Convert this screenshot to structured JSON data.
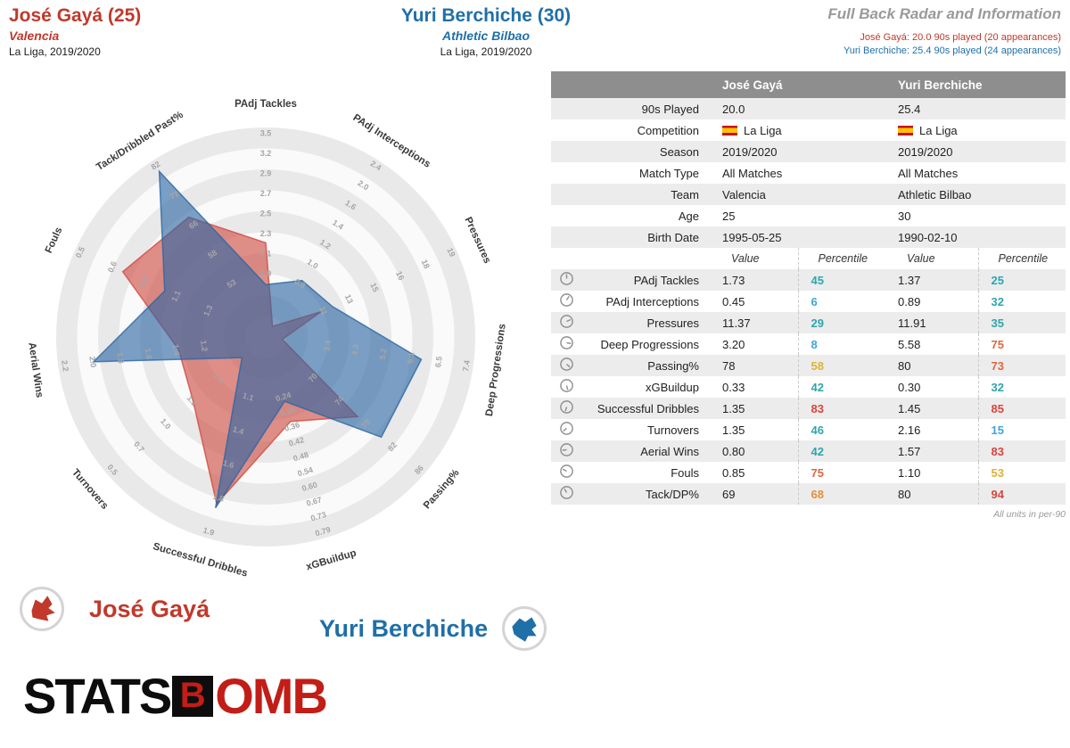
{
  "header": {
    "player1": {
      "name": "José Gayá (25)",
      "team": "Valencia",
      "league": "La Liga, 2019/2020"
    },
    "player2": {
      "name": "Yuri Berchiche (30)",
      "team": "Athletic Bilbao",
      "league": "La Liga, 2019/2020"
    },
    "title": "Full Back Radar and Information",
    "note1": "José Gayá: 20.0 90s played (20 appearances)",
    "note2": "Yuri Berchiche: 25.4 90s played (24 appearances)"
  },
  "colors": {
    "player1": "#c0392b",
    "player2": "#1f6fa8",
    "radar_player1_fill": "#cf4a41",
    "radar_player2_fill": "#2b66a3",
    "percentile_stops": [
      {
        "max": 20,
        "color": "#3fa5d6"
      },
      {
        "max": 50,
        "color": "#2ea6ad"
      },
      {
        "max": 62,
        "color": "#ddb23c"
      },
      {
        "max": 72,
        "color": "#e2903c"
      },
      {
        "max": 80,
        "color": "#de6742"
      },
      {
        "max": 101,
        "color": "#d8453e"
      }
    ]
  },
  "chart_data": {
    "type": "radar",
    "title": "Full Back Radar and Information",
    "rings": 10,
    "legend_position": "bottom",
    "axes": [
      "PAdj Tackles",
      "PAdj Interceptions",
      "Pressures",
      "Deep Progressions",
      "Passing%",
      "xGBuildup",
      "Successful Dribbles",
      "Turnovers",
      "Aerial Wins",
      "Fouls",
      "Tack/Dribbled Past%"
    ],
    "axis_ticks": [
      [
        "1.9",
        "2.1",
        "2.3",
        "2.5",
        "2.7",
        "2.9",
        "3.2",
        "3.5"
      ],
      [
        "0.8",
        "1.0",
        "1.2",
        "1.4",
        "1.6",
        "2.0",
        "2.4"
      ],
      [
        "11",
        "13",
        "15",
        "16",
        "18",
        "19"
      ],
      [
        "3.4",
        "4.3",
        "5.2",
        "6.1",
        "6.5",
        "7.4"
      ],
      [
        "70",
        "74",
        "78",
        "82",
        "86"
      ],
      [
        "0.24",
        "0.30",
        "0.36",
        "0.42",
        "0.48",
        "0.54",
        "0.60",
        "0.67",
        "0.73",
        "0.79"
      ],
      [
        "1.1",
        "1.4",
        "1.6",
        "1.8",
        "1.9"
      ],
      [
        "1.4",
        "1.2",
        "1.0",
        "0.7",
        "0.5"
      ],
      [
        "1.2",
        "1.4",
        "1.6",
        "1.8",
        "2.0",
        "2.2"
      ],
      [
        "1.3",
        "1.1",
        "0.8",
        "0.6",
        "0.5"
      ],
      [
        "53",
        "58",
        "66",
        "72",
        "82"
      ]
    ],
    "series": [
      {
        "name": "José Gayá",
        "color": "#cf4a41",
        "values": [
          1.73,
          0.45,
          11.37,
          3.2,
          78,
          0.33,
          1.35,
          1.35,
          0.8,
          0.85,
          69
        ],
        "percentiles": [
          45,
          6,
          29,
          8,
          58,
          42,
          83,
          46,
          42,
          75,
          68
        ]
      },
      {
        "name": "Yuri Berchiche",
        "color": "#2b66a3",
        "values": [
          1.37,
          0.89,
          11.91,
          5.58,
          80,
          0.3,
          1.45,
          2.16,
          1.57,
          1.1,
          80
        ],
        "percentiles": [
          25,
          32,
          35,
          75,
          73,
          32,
          85,
          15,
          83,
          53,
          94
        ]
      }
    ]
  },
  "table": {
    "columns": [
      "José Gayá",
      "Yuri Berchiche"
    ],
    "info_rows": [
      {
        "label": "90s Played",
        "v1": "20.0",
        "v2": "25.4"
      },
      {
        "label": "Competition",
        "v1": "La Liga",
        "v2": "La Liga",
        "flag": true
      },
      {
        "label": "Season",
        "v1": "2019/2020",
        "v2": "2019/2020"
      },
      {
        "label": "Match Type",
        "v1": "All Matches",
        "v2": "All Matches"
      },
      {
        "label": "Team",
        "v1": "Valencia",
        "v2": "Athletic Bilbao"
      },
      {
        "label": "Age",
        "v1": "25",
        "v2": "30"
      },
      {
        "label": "Birth Date",
        "v1": "1995-05-25",
        "v2": "1990-02-10"
      }
    ],
    "value_header": [
      "Value",
      "Percentile",
      "Value",
      "Percentile"
    ],
    "metrics": [
      {
        "label": "PAdj Tackles",
        "v1": "1.73",
        "p1": 45,
        "v2": "1.37",
        "p2": 25
      },
      {
        "label": "PAdj Interceptions",
        "v1": "0.45",
        "p1": 6,
        "v2": "0.89",
        "p2": 32
      },
      {
        "label": "Pressures",
        "v1": "11.37",
        "p1": 29,
        "v2": "11.91",
        "p2": 35
      },
      {
        "label": "Deep Progressions",
        "v1": "3.20",
        "p1": 8,
        "v2": "5.58",
        "p2": 75
      },
      {
        "label": "Passing%",
        "v1": "78",
        "p1": 58,
        "v2": "80",
        "p2": 73
      },
      {
        "label": "xGBuildup",
        "v1": "0.33",
        "p1": 42,
        "v2": "0.30",
        "p2": 32
      },
      {
        "label": "Successful Dribbles",
        "v1": "1.35",
        "p1": 83,
        "v2": "1.45",
        "p2": 85
      },
      {
        "label": "Turnovers",
        "v1": "1.35",
        "p1": 46,
        "v2": "2.16",
        "p2": 15
      },
      {
        "label": "Aerial Wins",
        "v1": "0.80",
        "p1": 42,
        "v2": "1.57",
        "p2": 83
      },
      {
        "label": "Fouls",
        "v1": "0.85",
        "p1": 75,
        "v2": "1.10",
        "p2": 53
      },
      {
        "label": "Tack/DP%",
        "v1": "69",
        "p1": 68,
        "v2": "80",
        "p2": 94
      }
    ],
    "footer": "All units in per-90"
  },
  "legend": {
    "player1": "José Gayá",
    "player2": "Yuri Berchiche"
  },
  "logo": {
    "part1": "STATS",
    "part2": "B",
    "part3": "OMB"
  }
}
